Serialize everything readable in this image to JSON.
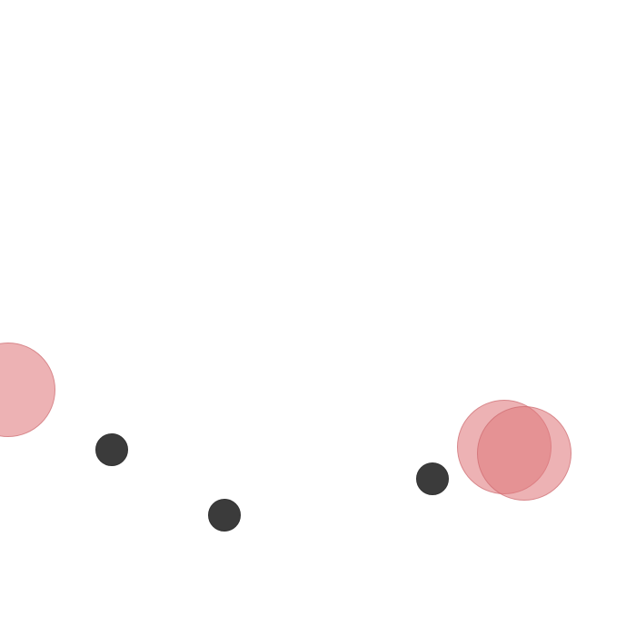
{
  "scene": {
    "background_color": "#ffffff",
    "pink_ball_color": "#e07a7e",
    "dark_ball_color": "#3b3b3b",
    "pink_ball_count": 3,
    "dark_ball_count": 3
  }
}
